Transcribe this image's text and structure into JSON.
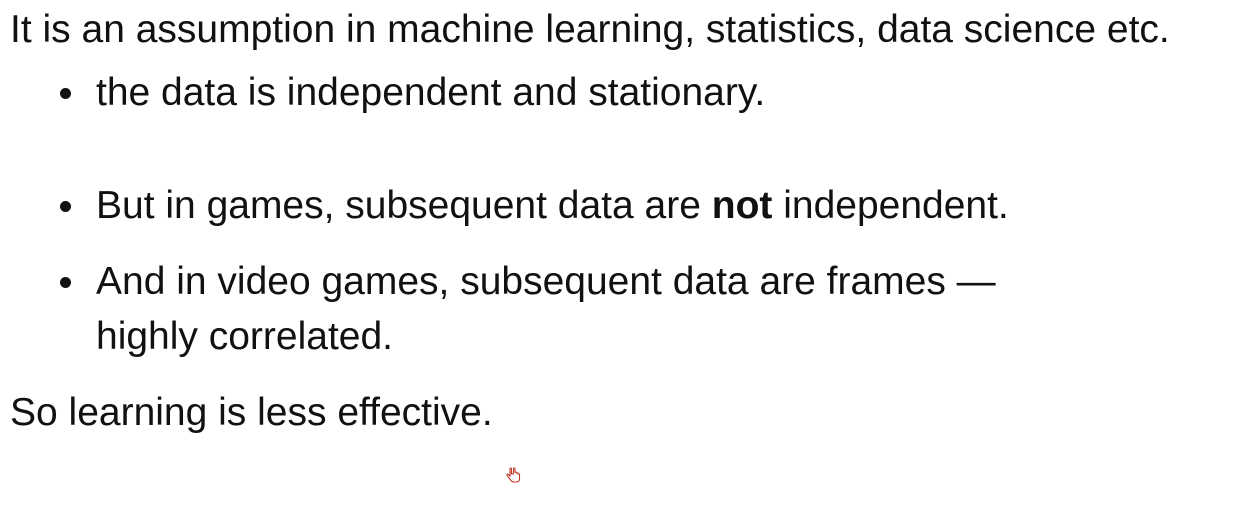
{
  "slide": {
    "intro": "It is an assumption in machine learning, statistics, data science etc.",
    "bullets": [
      {
        "text": "the data is independent and stationary."
      },
      {
        "before": "But in games, subsequent data are ",
        "bold": "not",
        "after": " independent."
      },
      {
        "text": "And in video games, subsequent data are frames — highly correlated."
      }
    ],
    "outro": "So learning is less effective."
  },
  "cursor": {
    "icon": "hand-cursor-icon",
    "color": "#c0392b"
  }
}
